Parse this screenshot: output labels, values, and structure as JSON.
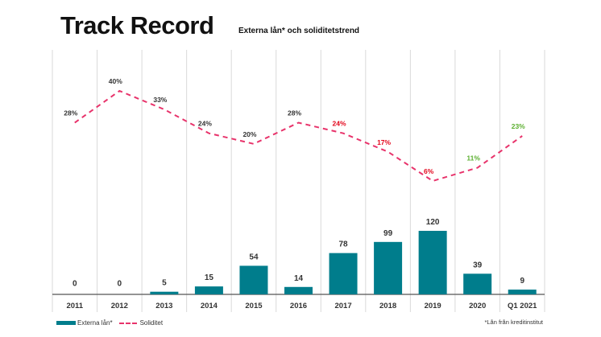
{
  "header": {
    "title": "Track Record",
    "subtitle": "Externa lån* och soliditetstrend"
  },
  "legend": {
    "bar_label": "Externa lån*",
    "line_label": "Soliditet"
  },
  "footnote": "*Lån från kreditinstitut",
  "colors": {
    "bar": "#007D8C",
    "line": "#E8336B",
    "label_default": "#333333",
    "label_red": "#E3051B",
    "label_green": "#5BAF2F",
    "grid": "#D9D9D9"
  },
  "chart_data": {
    "type": "bar+line",
    "title": "Track Record",
    "subtitle": "Externa lån* och soliditetstrend",
    "categories": [
      "2011",
      "2012",
      "2013",
      "2014",
      "2015",
      "2016",
      "2017",
      "2018",
      "2019",
      "2020",
      "Q1 2021"
    ],
    "series": [
      {
        "name": "Externa lån*",
        "type": "bar",
        "values": [
          0,
          0,
          5,
          15,
          54,
          14,
          78,
          99,
          120,
          39,
          9
        ],
        "labels": [
          "0",
          "0",
          "5",
          "15",
          "54",
          "14",
          "78",
          "99",
          "120",
          "39",
          "9"
        ]
      },
      {
        "name": "Soliditet",
        "type": "line",
        "style": "dashed",
        "values": [
          28,
          40,
          33,
          24,
          20,
          28,
          24,
          17,
          6,
          11,
          23
        ],
        "labels": [
          "28%",
          "40%",
          "33%",
          "24%",
          "20%",
          "28%",
          "24%",
          "17%",
          "6%",
          "11%",
          "23%"
        ],
        "label_colors": [
          "default",
          "default",
          "default",
          "default",
          "default",
          "default",
          "red",
          "red",
          "red",
          "green",
          "green"
        ]
      }
    ],
    "bar_range": [
      0,
      120
    ],
    "line_range": [
      6,
      40
    ],
    "grid": "vertical"
  }
}
